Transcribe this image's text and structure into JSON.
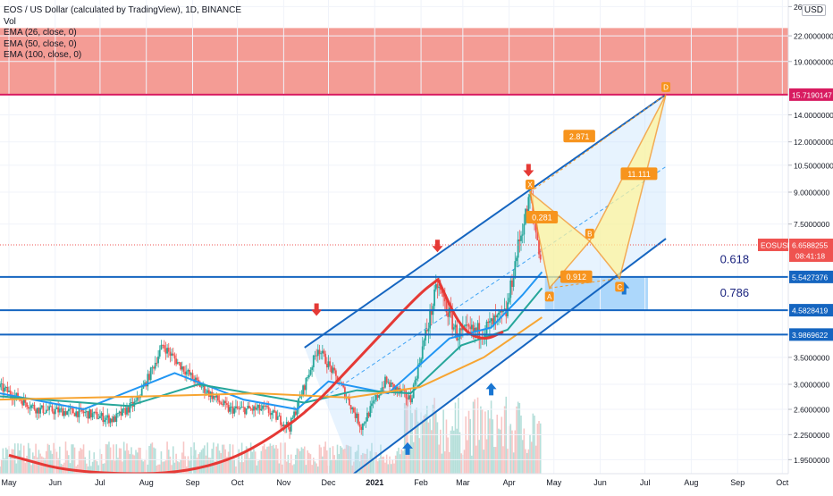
{
  "header": {
    "title": "EOS / US Dollar (calculated by TradingView), 1D, BINANCE",
    "vol_label": "Vol",
    "ema_labels": [
      "EMA (26, close, 0)",
      "EMA (50, close, 0)",
      "EMA (100, close, 0)"
    ],
    "currency": "USD"
  },
  "colors": {
    "up": "#26a69a",
    "down": "#ef5350",
    "ema26": "#2196f3",
    "ema50": "#26a69a",
    "ema100": "#f7a532",
    "channel": "#1565c0",
    "pattern": "#f7941d",
    "resistance_zone": "#f28b82",
    "support_zone": "#90caf9"
  },
  "chart_data": {
    "type": "candlestick",
    "y_scale": "log",
    "ylim": [
      1.8,
      27
    ],
    "x_range": [
      "2020-04-25",
      "2021-10-05"
    ],
    "x_ticks": [
      {
        "date": "2020-05-01",
        "label": "May"
      },
      {
        "date": "2020-06-01",
        "label": "Jun"
      },
      {
        "date": "2020-07-01",
        "label": "Jul"
      },
      {
        "date": "2020-08-01",
        "label": "Aug"
      },
      {
        "date": "2020-09-01",
        "label": "Sep"
      },
      {
        "date": "2020-10-01",
        "label": "Oct"
      },
      {
        "date": "2020-11-01",
        "label": "Nov"
      },
      {
        "date": "2020-12-01",
        "label": "Dec"
      },
      {
        "date": "2021-01-01",
        "label": "2021"
      },
      {
        "date": "2021-02-01",
        "label": "Feb"
      },
      {
        "date": "2021-03-01",
        "label": "Mar"
      },
      {
        "date": "2021-04-01",
        "label": "Apr"
      },
      {
        "date": "2021-05-01",
        "label": "May"
      },
      {
        "date": "2021-06-01",
        "label": "Jun"
      },
      {
        "date": "2021-07-01",
        "label": "Jul"
      },
      {
        "date": "2021-08-01",
        "label": "Aug"
      },
      {
        "date": "2021-09-01",
        "label": "Sep"
      },
      {
        "date": "2021-10-01",
        "label": "Oct"
      }
    ],
    "y_ticks": [
      {
        "value": 26,
        "label": "26."
      },
      {
        "value": 22,
        "label": "22.0000000"
      },
      {
        "value": 19,
        "label": "19.0000000"
      },
      {
        "value": 14,
        "label": "14.0000000"
      },
      {
        "value": 12,
        "label": "12.0000000"
      },
      {
        "value": 10.5,
        "label": "10.5000000"
      },
      {
        "value": 9,
        "label": "9.0000000"
      },
      {
        "value": 7.5,
        "label": "7.5000000"
      },
      {
        "value": 3.5,
        "label": "3.5000000"
      },
      {
        "value": 3,
        "label": "3.0000000"
      },
      {
        "value": 2.6,
        "label": "2.6000000"
      },
      {
        "value": 2.25,
        "label": "2.2500000"
      },
      {
        "value": 1.95,
        "label": "1.9500000"
      }
    ],
    "price_marks": [
      {
        "value": 15.719,
        "label": "15.7190147",
        "color": "#d81b60"
      },
      {
        "value": 5.5427,
        "label": "5.5427376",
        "color": "#1565c0"
      },
      {
        "value": 4.5828,
        "label": "4.5828419",
        "color": "#1565c0"
      },
      {
        "value": 3.987,
        "label": "3.9869622",
        "color": "#1565c0"
      }
    ],
    "current_price": {
      "symbol": "EOSUSD",
      "value": 6.6588,
      "label": "6.6588255",
      "countdown": "08:41:18"
    },
    "horizontal_lines": [
      {
        "value": 15.719,
        "color": "#d81b60"
      },
      {
        "value": 5.5427,
        "color": "#1565c0"
      },
      {
        "value": 4.5828,
        "color": "#1565c0"
      },
      {
        "value": 3.987,
        "color": "#1565c0"
      }
    ],
    "zones": [
      {
        "name": "resistance",
        "from": 15.72,
        "to": 23.0,
        "x_from": "2020-04-25",
        "x_to": "2021-10-05"
      },
      {
        "name": "support",
        "from": 4.58,
        "to": 5.54,
        "x_from": "2021-04-25",
        "x_to": "2021-07-03"
      }
    ],
    "fib_labels": [
      {
        "label": "0.618",
        "date": "2021-08-30",
        "value": 6.0
      },
      {
        "label": "0.786",
        "date": "2021-08-30",
        "value": 4.95
      }
    ],
    "channel": {
      "upper": [
        {
          "date": "2020-11-15",
          "value": 3.7
        },
        {
          "date": "2021-07-15",
          "value": 15.72
        }
      ],
      "lower": [
        {
          "date": "2020-12-18",
          "value": 1.8
        },
        {
          "date": "2021-07-15",
          "value": 6.9
        }
      ]
    },
    "harmonic": {
      "points": [
        {
          "id": "X",
          "date": "2021-04-15",
          "value": 9.0
        },
        {
          "id": "A",
          "date": "2021-04-28",
          "value": 5.2
        },
        {
          "id": "B",
          "date": "2021-05-25",
          "value": 6.8
        },
        {
          "id": "C",
          "date": "2021-06-14",
          "value": 5.5
        },
        {
          "id": "D",
          "date": "2021-07-15",
          "value": 15.72
        }
      ],
      "ratios": [
        {
          "label": "0.281",
          "date": "2021-04-23",
          "value": 7.8
        },
        {
          "label": "0.912",
          "date": "2021-05-16",
          "value": 5.55
        },
        {
          "label": "2.871",
          "date": "2021-05-18",
          "value": 12.4
        },
        {
          "label": "11.111",
          "date": "2021-06-27",
          "value": 10.0
        }
      ]
    },
    "arrows_down": [
      {
        "date": "2020-11-23",
        "value": 4.55
      },
      {
        "date": "2021-02-12",
        "value": 6.55
      },
      {
        "date": "2021-04-14",
        "value": 10.1
      }
    ],
    "arrows_up": [
      {
        "date": "2021-01-23",
        "value": 2.1
      },
      {
        "date": "2021-03-20",
        "value": 2.95
      },
      {
        "date": "2021-06-17",
        "value": 5.25
      }
    ],
    "price_path": [
      {
        "date": "2020-04-25",
        "value": 2.95
      },
      {
        "date": "2020-05-20",
        "value": 2.6
      },
      {
        "date": "2020-06-20",
        "value": 2.55
      },
      {
        "date": "2020-07-10",
        "value": 2.45
      },
      {
        "date": "2020-07-25",
        "value": 2.7
      },
      {
        "date": "2020-08-02",
        "value": 3.1
      },
      {
        "date": "2020-08-12",
        "value": 3.75
      },
      {
        "date": "2020-08-22",
        "value": 3.4
      },
      {
        "date": "2020-09-05",
        "value": 3.0
      },
      {
        "date": "2020-09-25",
        "value": 2.6
      },
      {
        "date": "2020-10-20",
        "value": 2.6
      },
      {
        "date": "2020-11-05",
        "value": 2.35
      },
      {
        "date": "2020-11-24",
        "value": 3.7
      },
      {
        "date": "2020-12-10",
        "value": 2.95
      },
      {
        "date": "2020-12-23",
        "value": 2.35
      },
      {
        "date": "2021-01-08",
        "value": 3.05
      },
      {
        "date": "2021-01-25",
        "value": 2.75
      },
      {
        "date": "2021-02-12",
        "value": 5.3
      },
      {
        "date": "2021-02-25",
        "value": 4.0
      },
      {
        "date": "2021-03-15",
        "value": 4.1
      },
      {
        "date": "2021-03-30",
        "value": 4.5
      },
      {
        "date": "2021-04-07",
        "value": 6.6
      },
      {
        "date": "2021-04-15",
        "value": 8.8
      },
      {
        "date": "2021-04-22",
        "value": 6.2
      }
    ],
    "emas": [
      {
        "name": "EMA 26",
        "points": [
          {
            "date": "2020-04-25",
            "value": 2.85
          },
          {
            "date": "2020-06-20",
            "value": 2.6
          },
          {
            "date": "2020-08-20",
            "value": 3.2
          },
          {
            "date": "2020-10-05",
            "value": 2.75
          },
          {
            "date": "2020-11-10",
            "value": 2.6
          },
          {
            "date": "2020-12-01",
            "value": 3.05
          },
          {
            "date": "2021-01-10",
            "value": 2.85
          },
          {
            "date": "2021-02-20",
            "value": 3.9
          },
          {
            "date": "2021-03-20",
            "value": 4.15
          },
          {
            "date": "2021-04-10",
            "value": 5.0
          },
          {
            "date": "2021-04-23",
            "value": 5.7
          }
        ]
      },
      {
        "name": "EMA 50",
        "points": [
          {
            "date": "2020-04-25",
            "value": 2.8
          },
          {
            "date": "2020-07-20",
            "value": 2.65
          },
          {
            "date": "2020-09-05",
            "value": 3.0
          },
          {
            "date": "2020-11-15",
            "value": 2.7
          },
          {
            "date": "2020-12-20",
            "value": 2.9
          },
          {
            "date": "2021-01-25",
            "value": 2.85
          },
          {
            "date": "2021-02-28",
            "value": 3.75
          },
          {
            "date": "2021-03-31",
            "value": 4.1
          },
          {
            "date": "2021-04-23",
            "value": 5.2
          }
        ]
      },
      {
        "name": "EMA 100",
        "points": [
          {
            "date": "2020-04-25",
            "value": 2.75
          },
          {
            "date": "2020-08-01",
            "value": 2.8
          },
          {
            "date": "2020-10-15",
            "value": 2.85
          },
          {
            "date": "2020-12-15",
            "value": 2.78
          },
          {
            "date": "2021-01-31",
            "value": 2.95
          },
          {
            "date": "2021-03-15",
            "value": 3.5
          },
          {
            "date": "2021-04-23",
            "value": 4.4
          }
        ]
      }
    ],
    "arc_curves": [
      {
        "color": "#e53935",
        "points": [
          {
            "date": "2020-05-01",
            "value": 2.0
          },
          {
            "date": "2020-06-15",
            "value": 1.8
          },
          {
            "date": "2020-09-10",
            "value": 1.8
          },
          {
            "date": "2020-11-10",
            "value": 2.4
          },
          {
            "date": "2020-12-25",
            "value": 3.6
          },
          {
            "date": "2021-01-30",
            "value": 5.0
          },
          {
            "date": "2021-02-12",
            "value": 5.45
          }
        ]
      },
      {
        "color": "#e53935",
        "points": [
          {
            "date": "2021-02-12",
            "value": 5.5
          },
          {
            "date": "2021-02-28",
            "value": 4.1
          },
          {
            "date": "2021-03-15",
            "value": 3.85
          },
          {
            "date": "2021-03-28",
            "value": 4.05
          }
        ]
      }
    ]
  }
}
